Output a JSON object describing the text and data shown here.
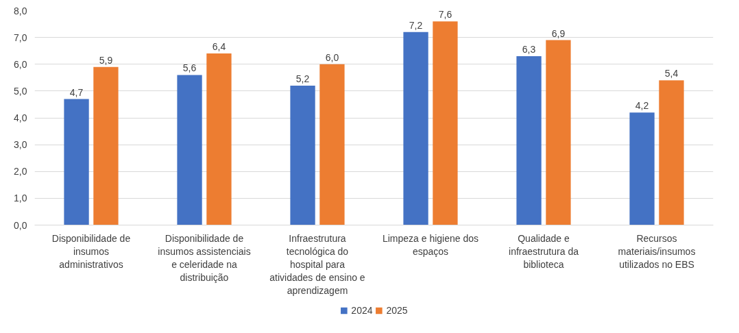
{
  "chart_data": {
    "type": "bar",
    "categories": [
      "Disponibilidade de insumos administrativos",
      "Disponibilidade de insumos assistenciais e celeridade na distribuição",
      "Infraestrutura tecnológica do hospital para atividades de ensino e aprendizagem",
      "Limpeza e higiene dos espaços",
      "Qualidade e infraestrutura da biblioteca",
      "Recursos materiais/insumos utilizados no EBS"
    ],
    "series": [
      {
        "name": "2024",
        "color": "#4472c4",
        "values": [
          4.7,
          5.6,
          5.2,
          7.2,
          6.3,
          4.2
        ],
        "value_labels": [
          "4,7",
          "5,6",
          "5,2",
          "7,2",
          "6,3",
          "4,2"
        ]
      },
      {
        "name": "2025",
        "color": "#ed7d31",
        "values": [
          5.9,
          6.4,
          6.0,
          7.6,
          6.9,
          5.4
        ],
        "value_labels": [
          "5,9",
          "6,4",
          "6,0",
          "7,6",
          "6,9",
          "5,4"
        ]
      }
    ],
    "ylim": [
      0,
      8
    ],
    "yticks": [
      {
        "value": 0,
        "label": "0,0"
      },
      {
        "value": 1,
        "label": "1,0"
      },
      {
        "value": 2,
        "label": "2,0"
      },
      {
        "value": 3,
        "label": "3,0"
      },
      {
        "value": 4,
        "label": "4,0"
      },
      {
        "value": 5,
        "label": "5,0"
      },
      {
        "value": 6,
        "label": "6,0"
      },
      {
        "value": 7,
        "label": "7,0"
      },
      {
        "value": 8,
        "label": "8,0"
      }
    ],
    "grid": "y",
    "legend": "bottom"
  }
}
